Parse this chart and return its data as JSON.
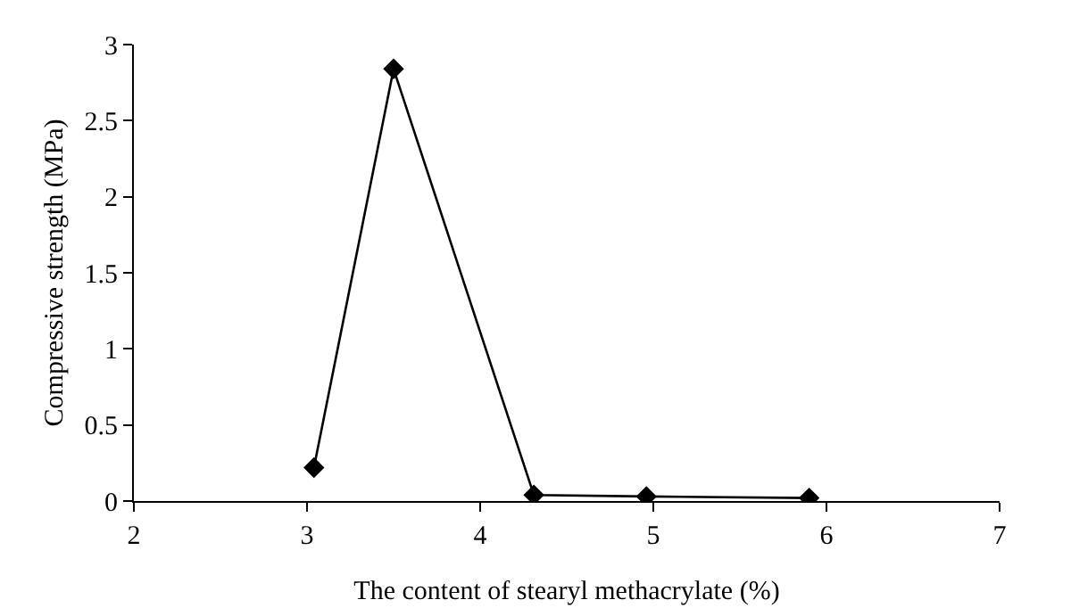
{
  "chart_data": {
    "type": "line",
    "xlabel": "The content of stearyl methacrylate (%)",
    "ylabel": "Compressive strength (MPa)",
    "x": [
      3.04,
      3.5,
      4.31,
      4.96,
      5.9
    ],
    "series": [
      {
        "color": "#000000",
        "values": [
          0.22,
          2.84,
          0.04,
          0.03,
          0.02
        ]
      }
    ],
    "xlim": [
      2,
      7
    ],
    "xticks": [
      2,
      3,
      4,
      5,
      6,
      7
    ],
    "ylim": [
      0,
      3
    ],
    "yticks": [
      0,
      0.5,
      1,
      1.5,
      2,
      2.5,
      3
    ],
    "grid": false,
    "marker": "diamond",
    "line_style": "solid"
  }
}
